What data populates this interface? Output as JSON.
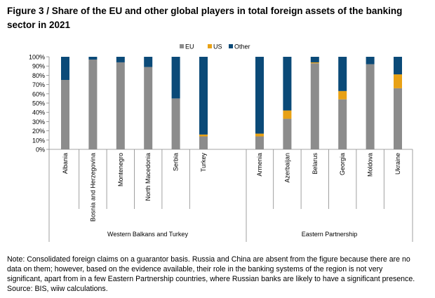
{
  "title": "Figure 3 / Share of the EU and other global players in total foreign assets of the banking sector in 2021",
  "chart_data": {
    "type": "bar",
    "stacked": true,
    "categories": [
      "Albania",
      "Bosnia and Herzegovina",
      "Montenegro",
      "North Macedonia",
      "Serbia",
      "Turkey",
      "Armenia",
      "Azerbaijan",
      "Belarus",
      "Georgia",
      "Moldova",
      "Ukraine"
    ],
    "groups": [
      {
        "label": "Western Balkans and Turkey",
        "categories": [
          "Albania",
          "Bosnia and Herzegovina",
          "Montenegro",
          "North Macedonia",
          "Serbia",
          "Turkey"
        ]
      },
      {
        "label": "Eastern Partnership",
        "categories": [
          "Armenia",
          "Azerbaijan",
          "Belarus",
          "Georgia",
          "Moldova",
          "Ukraine"
        ]
      }
    ],
    "series": [
      {
        "name": "EU",
        "color": "#8c8c8c",
        "values": [
          75,
          97,
          94,
          89,
          55,
          14,
          14,
          33,
          93,
          54,
          92,
          66
        ]
      },
      {
        "name": "US",
        "color": "#e8a115",
        "values": [
          0,
          0,
          0,
          0,
          0,
          2,
          3,
          9,
          1,
          9,
          0,
          15
        ]
      },
      {
        "name": "Other",
        "color": "#0b4a78",
        "values": [
          25,
          3,
          6,
          11,
          45,
          84,
          83,
          58,
          6,
          37,
          8,
          19
        ]
      }
    ],
    "ylim": [
      0,
      100
    ],
    "yticks": [
      "0%",
      "10%",
      "20%",
      "30%",
      "40%",
      "50%",
      "60%",
      "70%",
      "80%",
      "90%",
      "100%"
    ],
    "legend_position": "top-center"
  },
  "note_lines": [
    "Note: Consolidated foreign claims on a guarantor basis. Russia and China are absent from the figure because there are no",
    "data on them; however, based on the evidence available, their role in the banking systems of the region is not very",
    "significant, apart from in a few Eastern Partnership countries, where Russian banks are likely to have a significant presence.",
    "Source: BIS, wiiw calculations."
  ]
}
